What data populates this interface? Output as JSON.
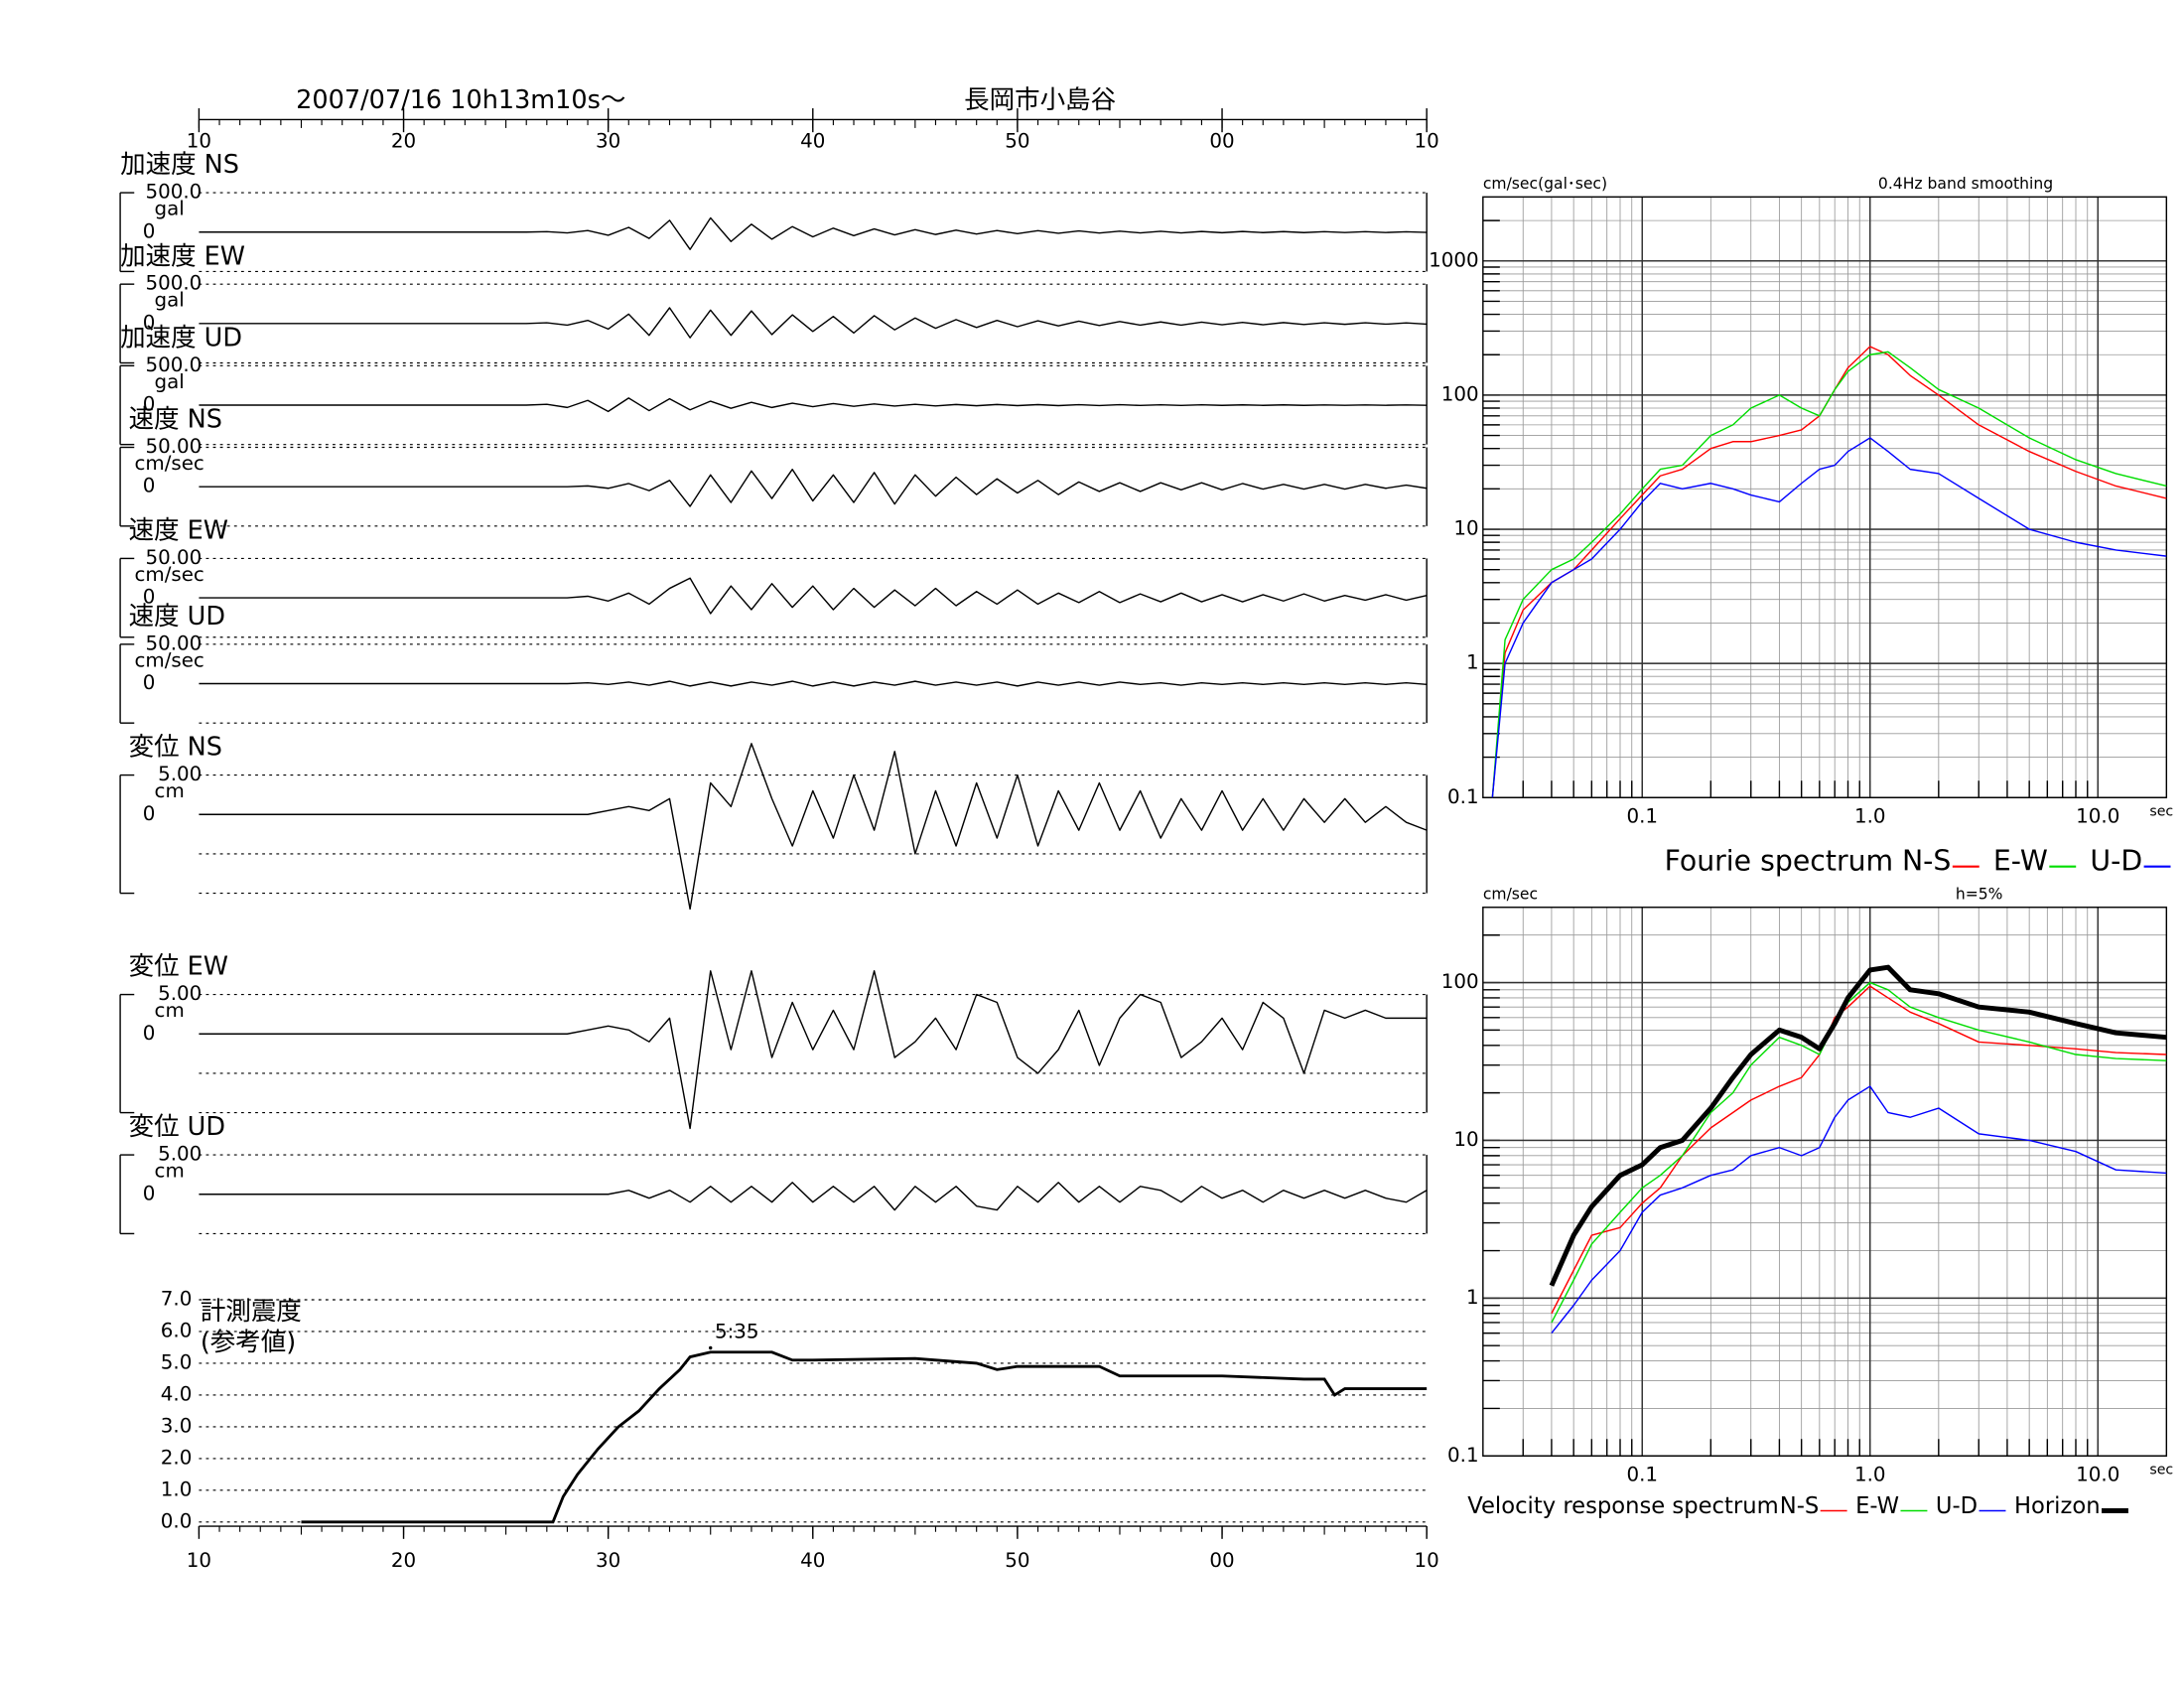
{
  "chart_data": [
    {
      "type": "waveform",
      "title": "2007/07/16  10h13m10s〜",
      "subtitle": "長岡市小島谷",
      "xlim": [
        10,
        70
      ],
      "xticks": [
        10,
        20,
        30,
        40,
        50,
        {
          "value": 60,
          "label": "00"
        },
        {
          "value": 70,
          "label": "10"
        }
      ],
      "x": [
        10,
        11,
        12,
        13,
        14,
        15,
        16,
        17,
        18,
        19,
        20,
        21,
        22,
        23,
        24,
        25,
        26,
        27,
        28,
        29,
        30,
        31,
        32,
        33,
        34,
        35,
        36,
        37,
        38,
        39,
        40,
        41,
        42,
        43,
        44,
        45,
        46,
        47,
        48,
        49,
        50,
        51,
        52,
        53,
        54,
        55,
        56,
        57,
        58,
        59,
        60,
        61,
        62,
        63,
        64,
        65,
        66,
        67,
        68,
        69,
        70
      ],
      "color": "#000000",
      "panels": [
        {
          "name": "加速度 NS",
          "unit": "gal",
          "ylim": [
            -500,
            500
          ],
          "yticks": [
            {
              "value": 500,
              "label": "500.0"
            },
            0
          ],
          "values": [
            0,
            0,
            0,
            0,
            0,
            0,
            0,
            0,
            0,
            0,
            0,
            0,
            0,
            0,
            0,
            0,
            0,
            5,
            -10,
            20,
            -40,
            60,
            -80,
            150,
            -220,
            180,
            -120,
            100,
            -90,
            70,
            -60,
            50,
            -45,
            40,
            -35,
            30,
            -30,
            25,
            -25,
            20,
            -20,
            18,
            -15,
            15,
            -12,
            12,
            -10,
            10,
            -10,
            8,
            -8,
            8,
            -6,
            6,
            -6,
            5,
            -5,
            5,
            -5,
            4,
            -4
          ]
        },
        {
          "name": "加速度 EW",
          "unit": "gal",
          "ylim": [
            -500,
            500
          ],
          "yticks": [
            {
              "value": 500,
              "label": "500.0"
            },
            0
          ],
          "values": [
            0,
            0,
            0,
            0,
            0,
            0,
            0,
            0,
            0,
            0,
            0,
            0,
            0,
            0,
            0,
            0,
            0,
            10,
            -20,
            40,
            -70,
            120,
            -150,
            200,
            -180,
            170,
            -150,
            160,
            -140,
            110,
            -100,
            90,
            -120,
            100,
            -80,
            70,
            -60,
            50,
            -50,
            40,
            -40,
            35,
            -30,
            30,
            -25,
            25,
            -20,
            20,
            -20,
            18,
            -15,
            15,
            -15,
            12,
            -12,
            10,
            -10,
            10,
            -8,
            8,
            -8
          ]
        },
        {
          "name": "加速度 UD",
          "unit": "gal",
          "ylim": [
            -500,
            500
          ],
          "yticks": [
            {
              "value": 500,
              "label": "500.0"
            },
            0
          ],
          "values": [
            0,
            0,
            0,
            0,
            0,
            0,
            0,
            0,
            0,
            0,
            0,
            0,
            0,
            0,
            0,
            0,
            0,
            10,
            -30,
            60,
            -80,
            90,
            -70,
            80,
            -60,
            50,
            -40,
            35,
            -30,
            25,
            -20,
            20,
            -15,
            15,
            -12,
            10,
            -10,
            8,
            -8,
            8,
            -6,
            6,
            -6,
            5,
            -5,
            5,
            -4,
            4,
            -4,
            4,
            -3,
            3,
            -3,
            3,
            -3,
            2,
            -2,
            2,
            -2,
            2,
            -2
          ]
        },
        {
          "name": "速度 NS",
          "unit": "cm/sec",
          "ylim": [
            -50,
            50
          ],
          "yticks": [
            {
              "value": 50,
              "label": "50.00"
            },
            0
          ],
          "values": [
            0,
            0,
            0,
            0,
            0,
            0,
            0,
            0,
            0,
            0,
            0,
            0,
            0,
            0,
            0,
            0,
            0,
            0,
            0,
            1,
            -2,
            4,
            -5,
            8,
            -25,
            15,
            -20,
            20,
            -15,
            22,
            -18,
            15,
            -20,
            18,
            -22,
            15,
            -12,
            12,
            -10,
            10,
            -8,
            8,
            -10,
            6,
            -6,
            5,
            -6,
            5,
            -4,
            5,
            -4,
            4,
            -3,
            3,
            -3,
            3,
            -3,
            3,
            -2,
            2,
            -2
          ]
        },
        {
          "name": "速度 EW",
          "unit": "cm/sec",
          "ylim": [
            -50,
            50
          ],
          "yticks": [
            {
              "value": 50,
              "label": "50.00"
            },
            0
          ],
          "values": [
            0,
            0,
            0,
            0,
            0,
            0,
            0,
            0,
            0,
            0,
            0,
            0,
            0,
            0,
            0,
            0,
            0,
            0,
            0,
            2,
            -4,
            6,
            -8,
            12,
            25,
            -20,
            15,
            -15,
            18,
            -12,
            15,
            -15,
            12,
            -12,
            10,
            -10,
            12,
            -10,
            8,
            -8,
            10,
            -8,
            6,
            -6,
            8,
            -6,
            5,
            -5,
            6,
            -5,
            4,
            -5,
            4,
            -4,
            5,
            -4,
            3,
            -3,
            4,
            -3,
            3
          ]
        },
        {
          "name": "速度 UD",
          "unit": "cm/sec",
          "ylim": [
            -50,
            50
          ],
          "yticks": [
            {
              "value": 50,
              "label": "50.00"
            },
            0
          ],
          "values": [
            0,
            0,
            0,
            0,
            0,
            0,
            0,
            0,
            0,
            0,
            0,
            0,
            0,
            0,
            0,
            0,
            0,
            0,
            0,
            1,
            -1,
            2,
            -2,
            3,
            -3,
            2,
            -3,
            2,
            -2,
            3,
            -3,
            2,
            -3,
            2,
            -2,
            3,
            -2,
            2,
            -2,
            2,
            -3,
            2,
            -2,
            2,
            -2,
            2,
            -1,
            1,
            -2,
            1,
            -1,
            1,
            -1,
            1,
            -1,
            1,
            -1,
            1,
            -1,
            1,
            -1
          ]
        },
        {
          "name": "変位 NS",
          "unit": "cm",
          "ylim": [
            -10,
            5
          ],
          "yticks": [
            {
              "value": 5,
              "label": "5.00"
            },
            0
          ],
          "values": [
            0,
            0,
            0,
            0,
            0,
            0,
            0,
            0,
            0,
            0,
            0,
            0,
            0,
            0,
            0,
            0,
            0,
            0,
            0,
            0,
            0.5,
            1,
            0.5,
            2,
            -12,
            4,
            1,
            9,
            2,
            -4,
            3,
            -3,
            5,
            -2,
            8,
            -5,
            3,
            -4,
            4,
            -3,
            5,
            -4,
            3,
            -2,
            4,
            -2,
            3,
            -3,
            2,
            -2,
            3,
            -2,
            2,
            -2,
            2,
            -1,
            2,
            -1,
            1,
            -1,
            -2
          ]
        },
        {
          "name": "変位 EW",
          "unit": "cm",
          "ylim": [
            -10,
            5
          ],
          "yticks": [
            {
              "value": 5,
              "label": "5.00"
            },
            0
          ],
          "values": [
            0,
            0,
            0,
            0,
            0,
            0,
            0,
            0,
            0,
            0,
            0,
            0,
            0,
            0,
            0,
            0,
            0,
            0,
            0,
            0.5,
            1,
            0.5,
            -1,
            2,
            -12,
            8,
            -2,
            8,
            -3,
            4,
            -2,
            3,
            -2,
            8,
            -3,
            -1,
            2,
            -2,
            5,
            4,
            -3,
            -5,
            -2,
            3,
            -4,
            2,
            5,
            4,
            -3,
            -1,
            2,
            -2,
            4,
            2,
            -5,
            3,
            2,
            3,
            2,
            2,
            2
          ]
        },
        {
          "name": "変位 UD",
          "unit": "cm",
          "ylim": [
            -5,
            5
          ],
          "yticks": [
            {
              "value": 5,
              "label": "5.00"
            },
            0
          ],
          "values": [
            0,
            0,
            0,
            0,
            0,
            0,
            0,
            0,
            0,
            0,
            0,
            0,
            0,
            0,
            0,
            0,
            0,
            0,
            0,
            0,
            0,
            0.5,
            -0.5,
            0.5,
            -1,
            1,
            -1,
            1,
            -1,
            1.5,
            -1,
            1,
            -1,
            1,
            -2,
            1,
            -1,
            1,
            -1.5,
            -2,
            1,
            -1,
            1.5,
            -1,
            1,
            -1,
            1,
            0.5,
            -1,
            1,
            -0.5,
            0.5,
            -1,
            0.5,
            -0.5,
            0.5,
            -0.5,
            0.5,
            -0.5,
            -1,
            0.5
          ]
        }
      ]
    },
    {
      "type": "line",
      "title": "計測震度",
      "subtitle": "(参考値)",
      "annotation": "5:35",
      "xlim": [
        10,
        70
      ],
      "xticks": [
        10,
        20,
        30,
        40,
        50,
        {
          "value": 60,
          "label": "00"
        },
        {
          "value": 70,
          "label": "10"
        }
      ],
      "ylim": [
        0,
        7
      ],
      "yticks": [
        {
          "value": 0,
          "label": "0.0"
        },
        {
          "value": 1,
          "label": "1.0"
        },
        {
          "value": 2,
          "label": "2.0"
        },
        {
          "value": 3,
          "label": "3.0"
        },
        {
          "value": 4,
          "label": "4.0"
        },
        {
          "value": 5,
          "label": "5.0"
        },
        {
          "value": 6,
          "label": "6.0"
        },
        {
          "value": 7,
          "label": "7.0"
        }
      ],
      "grid": true,
      "color": "#000000",
      "x": [
        15,
        27.3,
        27.8,
        28.5,
        29.5,
        30.5,
        31.5,
        32.5,
        33.5,
        34,
        35,
        36,
        38,
        39,
        40,
        45,
        48,
        49,
        50,
        54,
        55,
        60,
        64,
        65,
        65.5,
        66,
        70
      ],
      "values": [
        0,
        0,
        0.8,
        1.5,
        2.3,
        3.0,
        3.5,
        4.2,
        4.8,
        5.2,
        5.35,
        5.35,
        5.35,
        5.1,
        5.1,
        5.15,
        5.0,
        4.8,
        4.9,
        4.9,
        4.6,
        4.6,
        4.5,
        4.5,
        4.0,
        4.2,
        4.2
      ]
    },
    {
      "type": "loglog",
      "title": "Fourie spectrum",
      "ylabel": "cm/sec(gal･sec)",
      "note": "0.4Hz band smoothing",
      "xlabel": "sec",
      "log": true,
      "grid": true,
      "xlim": [
        0.02,
        20
      ],
      "ylim": [
        0.1,
        3000
      ],
      "xticks": [
        0.1,
        {
          "value": 1,
          "label": "1.0"
        },
        {
          "value": 10,
          "label": "10.0"
        }
      ],
      "yticks": [
        1000,
        100,
        10,
        1,
        0.1
      ],
      "x": [
        0.022,
        0.025,
        0.03,
        0.04,
        0.05,
        0.06,
        0.08,
        0.1,
        0.12,
        0.15,
        0.2,
        0.25,
        0.3,
        0.4,
        0.5,
        0.6,
        0.7,
        0.8,
        1.0,
        1.2,
        1.5,
        2,
        3,
        5,
        8,
        12,
        20
      ],
      "series": [
        {
          "name": "N-S",
          "color": "#ff0000",
          "values": [
            0.1,
            1.2,
            2.5,
            4,
            5,
            7,
            12,
            18,
            25,
            28,
            40,
            45,
            45,
            50,
            55,
            70,
            110,
            160,
            230,
            200,
            140,
            100,
            60,
            38,
            27,
            21,
            17
          ]
        },
        {
          "name": "E-W",
          "color": "#00dd00",
          "values": [
            0.1,
            1.5,
            3,
            5,
            6,
            8,
            13,
            20,
            28,
            30,
            50,
            60,
            80,
            100,
            80,
            70,
            110,
            150,
            200,
            210,
            160,
            110,
            80,
            48,
            33,
            26,
            21
          ]
        },
        {
          "name": "U-D",
          "color": "#0000ff",
          "values": [
            0.1,
            1,
            2,
            4,
            5,
            6,
            10,
            16,
            22,
            20,
            22,
            20,
            18,
            16,
            22,
            28,
            30,
            38,
            48,
            38,
            28,
            26,
            17,
            10,
            8,
            7,
            6.3
          ]
        }
      ]
    },
    {
      "type": "loglog",
      "title": "Velocity response spectrum",
      "ylabel": "cm/sec",
      "note": "h=5%",
      "xlabel": "sec",
      "log": true,
      "grid": true,
      "xlim": [
        0.02,
        20
      ],
      "ylim": [
        0.1,
        300
      ],
      "xticks": [
        0.1,
        {
          "value": 1,
          "label": "1.0"
        },
        {
          "value": 10,
          "label": "10.0"
        }
      ],
      "yticks": [
        100,
        10,
        1,
        0.1
      ],
      "x": [
        0.04,
        0.05,
        0.06,
        0.08,
        0.1,
        0.12,
        0.15,
        0.2,
        0.25,
        0.3,
        0.4,
        0.5,
        0.6,
        0.7,
        0.8,
        1.0,
        1.2,
        1.5,
        2,
        3,
        5,
        8,
        12,
        20
      ],
      "series": [
        {
          "name": "N-S",
          "color": "#ff0000",
          "line_width": 1,
          "values": [
            0.8,
            1.5,
            2.5,
            2.8,
            4,
            5,
            8,
            12,
            15,
            18,
            22,
            25,
            35,
            60,
            70,
            95,
            80,
            65,
            55,
            42,
            40,
            38,
            36,
            35
          ]
        },
        {
          "name": "E-W",
          "color": "#00dd00",
          "line_width": 1,
          "values": [
            0.7,
            1.3,
            2.2,
            3.5,
            5,
            6,
            8,
            15,
            20,
            30,
            45,
            40,
            35,
            55,
            75,
            100,
            90,
            70,
            60,
            50,
            42,
            35,
            33,
            32
          ]
        },
        {
          "name": "U-D",
          "color": "#0000ff",
          "line_width": 1,
          "values": [
            0.6,
            0.9,
            1.3,
            2,
            3.5,
            4.5,
            5,
            6,
            6.5,
            8,
            9,
            8,
            9,
            14,
            18,
            22,
            15,
            14,
            16,
            11,
            10,
            8.5,
            6.5,
            6.2
          ]
        },
        {
          "name": "Horizon",
          "color": "#000000",
          "line_width": 3.5,
          "values": [
            1.2,
            2.5,
            3.8,
            6,
            7,
            9,
            10,
            16,
            25,
            35,
            50,
            45,
            38,
            55,
            80,
            120,
            125,
            90,
            85,
            70,
            65,
            55,
            48,
            45
          ]
        }
      ]
    }
  ]
}
